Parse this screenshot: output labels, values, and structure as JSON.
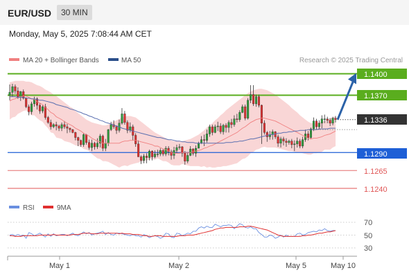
{
  "header": {
    "pair": "EUR/USD",
    "timeframe": "30 MIN",
    "timestamp": "Monday, May 5, 2025 7:08:44 AM CET"
  },
  "legend": {
    "ma20_bb": "MA 20 + Bollinger Bands",
    "ma50": "MA 50",
    "credit": "Research © 2025 Trading Central"
  },
  "rsi_legend": {
    "rsi": "RSI",
    "ma9": "9MA"
  },
  "colors": {
    "up": "#2e9e3c",
    "down": "#e03030",
    "bb": "#f7c8c8",
    "ma20": "#f08080",
    "ma50": "#5a6fb0",
    "green_level": "#5aad1e",
    "blue_level": "#1e5fd6",
    "red_level": "#e05555",
    "rsi": "#6a8fe0",
    "rsi_ma": "#e03030",
    "arrow": "#2b62a8",
    "current_tag": "#333333"
  },
  "chart_data": [
    {
      "type": "candlestick",
      "ylim": [
        1.1225,
        1.1425
      ],
      "levels": [
        {
          "value": 1.14,
          "label": "1.1400",
          "kind": "resistance"
        },
        {
          "value": 1.137,
          "label": "1.1370",
          "kind": "resistance"
        },
        {
          "value": 1.1336,
          "label": "1.1336",
          "kind": "current"
        },
        {
          "value": 1.129,
          "label": "1.1290",
          "kind": "pivot"
        },
        {
          "value": 1.1265,
          "label": "1.1265",
          "kind": "support"
        },
        {
          "value": 1.124,
          "label": "1.1240",
          "kind": "support"
        }
      ],
      "x_ticks": [
        "May 1",
        "May 2",
        "May 5",
        "May 10"
      ],
      "forecast_target": 1.14,
      "close": [
        1.1374,
        1.1382,
        1.1376,
        1.1368,
        1.1375,
        1.1366,
        1.1354,
        1.1347,
        1.1358,
        1.1365,
        1.1356,
        1.1348,
        1.1354,
        1.1339,
        1.1332,
        1.1326,
        1.1329,
        1.1327,
        1.1324,
        1.1329,
        1.1326,
        1.1324,
        1.1322,
        1.1318,
        1.1311,
        1.1307,
        1.1301,
        1.1315,
        1.1304,
        1.1297,
        1.1303,
        1.1298,
        1.1303,
        1.1313,
        1.1296,
        1.1303,
        1.1322,
        1.1329,
        1.1326,
        1.1321,
        1.1331,
        1.1344,
        1.1332,
        1.1321,
        1.1326,
        1.1314,
        1.1302,
        1.1284,
        1.1279,
        1.1285,
        1.1283,
        1.1292,
        1.1284,
        1.1288,
        1.1288,
        1.1293,
        1.1288,
        1.1296,
        1.1291,
        1.1286,
        1.1293,
        1.1297,
        1.1298,
        1.1289,
        1.1278,
        1.1286,
        1.1295,
        1.1289,
        1.1296,
        1.1303,
        1.1308,
        1.1307,
        1.1316,
        1.1326,
        1.1318,
        1.1326,
        1.1327,
        1.1319,
        1.1328,
        1.1325,
        1.1332,
        1.1329,
        1.1337,
        1.1336,
        1.1346,
        1.1354,
        1.1338,
        1.1363,
        1.1371,
        1.1358,
        1.1368,
        1.1356,
        1.1331,
        1.1318,
        1.1312,
        1.1315,
        1.1319,
        1.1312,
        1.1303,
        1.1309,
        1.1306,
        1.1304,
        1.1306,
        1.1301,
        1.1302,
        1.1306,
        1.1299,
        1.1308,
        1.1316,
        1.1311,
        1.1323,
        1.1334,
        1.1326,
        1.1331,
        1.1337,
        1.1337,
        1.1335,
        1.1331,
        1.1338,
        1.1336
      ],
      "high": [
        1.1385,
        1.1386,
        1.1385,
        1.1381,
        1.1376,
        1.1378,
        1.1367,
        1.1357,
        1.1361,
        1.1368,
        1.1367,
        1.1359,
        1.1356,
        1.1358,
        1.1341,
        1.1336,
        1.1331,
        1.1333,
        1.1329,
        1.1332,
        1.1334,
        1.133,
        1.1325,
        1.1323,
        1.1319,
        1.1312,
        1.1308,
        1.1317,
        1.1316,
        1.1308,
        1.1308,
        1.1305,
        1.131,
        1.1316,
        1.1315,
        1.1309,
        1.1323,
        1.1333,
        1.1335,
        1.1328,
        1.1336,
        1.1352,
        1.1348,
        1.1335,
        1.1332,
        1.1329,
        1.1317,
        1.1307,
        1.1286,
        1.1288,
        1.1289,
        1.1294,
        1.1293,
        1.1293,
        1.1294,
        1.1296,
        1.1295,
        1.1299,
        1.1299,
        1.1294,
        1.1298,
        1.1301,
        1.1302,
        1.1299,
        1.1292,
        1.129,
        1.1299,
        1.1296,
        1.13,
        1.1305,
        1.1313,
        1.1315,
        1.1322,
        1.1329,
        1.1329,
        1.1329,
        1.1333,
        1.1331,
        1.133,
        1.1331,
        1.1335,
        1.1337,
        1.1342,
        1.1344,
        1.1349,
        1.1357,
        1.1357,
        1.1366,
        1.1384,
        1.1384,
        1.1371,
        1.1371,
        1.1357,
        1.1335,
        1.132,
        1.132,
        1.1322,
        1.132,
        1.1315,
        1.1312,
        1.1312,
        1.131,
        1.1308,
        1.1309,
        1.1307,
        1.1311,
        1.1309,
        1.1312,
        1.1322,
        1.132,
        1.1325,
        1.1339,
        1.1337,
        1.1335,
        1.1342,
        1.1343,
        1.134,
        1.1338,
        1.134,
        1.1341
      ],
      "low": [
        1.1363,
        1.1368,
        1.1372,
        1.1365,
        1.1362,
        1.1364,
        1.1352,
        1.1342,
        1.1343,
        1.1354,
        1.135,
        1.1344,
        1.1345,
        1.1336,
        1.133,
        1.1322,
        1.1324,
        1.1321,
        1.132,
        1.132,
        1.1323,
        1.1317,
        1.1318,
        1.1317,
        1.1307,
        1.1299,
        1.1298,
        1.1298,
        1.1301,
        1.1294,
        1.1292,
        1.1294,
        1.1295,
        1.1297,
        1.1292,
        1.1292,
        1.1299,
        1.132,
        1.1323,
        1.1316,
        1.1318,
        1.1329,
        1.1329,
        1.1317,
        1.1318,
        1.1307,
        1.1298,
        1.1284,
        1.1274,
        1.1275,
        1.1275,
        1.1279,
        1.1279,
        1.1282,
        1.1284,
        1.1285,
        1.1285,
        1.1285,
        1.1286,
        1.128,
        1.1281,
        1.1289,
        1.1294,
        1.1284,
        1.1273,
        1.1275,
        1.1285,
        1.1286,
        1.1284,
        1.1296,
        1.1302,
        1.1299,
        1.1304,
        1.1312,
        1.1314,
        1.1317,
        1.132,
        1.1316,
        1.1315,
        1.1318,
        1.1318,
        1.1324,
        1.1326,
        1.1332,
        1.1333,
        1.1345,
        1.1335,
        1.1336,
        1.1359,
        1.1355,
        1.1354,
        1.1353,
        1.1302,
        1.1315,
        1.1305,
        1.1308,
        1.1308,
        1.1309,
        1.1298,
        1.1297,
        1.13,
        1.1298,
        1.1301,
        1.1296,
        1.1292,
        1.1297,
        1.1296,
        1.1296,
        1.1305,
        1.1307,
        1.1309,
        1.132,
        1.1322,
        1.1322,
        1.1324,
        1.1331,
        1.1331,
        1.1327,
        1.1328,
        1.1332
      ],
      "ma20": [
        1.1362,
        1.1364,
        1.1365,
        1.1367,
        1.1368,
        1.1369,
        1.1369,
        1.1367,
        1.1365,
        1.1364,
        1.1361,
        1.1359,
        1.1357,
        1.1353,
        1.135,
        1.1346,
        1.1344,
        1.134,
        1.1338,
        1.1336,
        1.1333,
        1.1331,
        1.1329,
        1.1327,
        1.1324,
        1.1322,
        1.132,
        1.1317,
        1.1315,
        1.1313,
        1.131,
        1.1308,
        1.1306,
        1.1305,
        1.1303,
        1.1303,
        1.1303,
        1.1303,
        1.1303,
        1.1303,
        1.1303,
        1.1305,
        1.1306,
        1.1306,
        1.1307,
        1.1307,
        1.1307,
        1.1306,
        1.1305,
        1.1304,
        1.1303,
        1.1302,
        1.1301,
        1.1299,
        1.1299,
        1.1297,
        1.1295,
        1.1294,
        1.1292,
        1.129,
        1.1289,
        1.1289,
        1.1289,
        1.129,
        1.129,
        1.129,
        1.129,
        1.1291,
        1.1292,
        1.1293,
        1.1294,
        1.1296,
        1.1297,
        1.1299,
        1.13,
        1.1302,
        1.1304,
        1.1306,
        1.1308,
        1.131,
        1.1312,
        1.1314,
        1.1316,
        1.1318,
        1.1321,
        1.1324,
        1.1326,
        1.1329,
        1.1332,
        1.1334,
        1.1336,
        1.1337,
        1.1338,
        1.1338,
        1.1337,
        1.1336,
        1.1335,
        1.1334,
        1.1332,
        1.133,
        1.1328,
        1.1326,
        1.1324,
        1.1322,
        1.132,
        1.1318,
        1.1316,
        1.1314,
        1.1312,
        1.131,
        1.1309,
        1.131,
        1.131,
        1.1311,
        1.1312,
        1.1314,
        1.1315,
        1.1316,
        1.1318,
        1.132
      ],
      "bb_upper": [
        1.1388,
        1.1389,
        1.139,
        1.139,
        1.139,
        1.139,
        1.1389,
        1.1389,
        1.1388,
        1.1386,
        1.1384,
        1.1383,
        1.1381,
        1.1378,
        1.1376,
        1.1374,
        1.1371,
        1.1369,
        1.1366,
        1.1363,
        1.136,
        1.1357,
        1.1354,
        1.1352,
        1.1348,
        1.1345,
        1.1342,
        1.1339,
        1.1336,
        1.1334,
        1.1332,
        1.1331,
        1.133,
        1.1329,
        1.1328,
        1.1328,
        1.1329,
        1.1331,
        1.1333,
        1.1335,
        1.1337,
        1.1339,
        1.134,
        1.1341,
        1.1341,
        1.134,
        1.1339,
        1.1336,
        1.1333,
        1.133,
        1.1327,
        1.1324,
        1.1321,
        1.1318,
        1.1316,
        1.1314,
        1.1312,
        1.131,
        1.1308,
        1.1307,
        1.1306,
        1.1306,
        1.1306,
        1.1306,
        1.1307,
        1.1308,
        1.1309,
        1.1311,
        1.1313,
        1.1315,
        1.1318,
        1.1321,
        1.1325,
        1.1328,
        1.1331,
        1.1335,
        1.1338,
        1.1342,
        1.1345,
        1.1349,
        1.1352,
        1.1355,
        1.1358,
        1.1361,
        1.1364,
        1.1367,
        1.137,
        1.1373,
        1.1375,
        1.1377,
        1.1378,
        1.1379,
        1.1379,
        1.1378,
        1.1377,
        1.1375,
        1.1373,
        1.1371,
        1.1368,
        1.1365,
        1.1362,
        1.1359,
        1.1356,
        1.1352,
        1.1349,
        1.1346,
        1.1342,
        1.1339,
        1.1336,
        1.1333,
        1.1331,
        1.1331,
        1.1331,
        1.1332,
        1.1333,
        1.1334,
        1.1336,
        1.1338,
        1.1339,
        1.1341
      ],
      "bb_lower": [
        1.1336,
        1.1339,
        1.134,
        1.1344,
        1.1346,
        1.1348,
        1.1349,
        1.1345,
        1.1342,
        1.1342,
        1.1338,
        1.1335,
        1.1333,
        1.1328,
        1.1324,
        1.1318,
        1.1317,
        1.1311,
        1.131,
        1.1309,
        1.1306,
        1.1305,
        1.1304,
        1.1302,
        1.13,
        1.1299,
        1.1298,
        1.1295,
        1.1294,
        1.1292,
        1.1288,
        1.1285,
        1.1282,
        1.1281,
        1.1278,
        1.1278,
        1.1277,
        1.1275,
        1.1273,
        1.1271,
        1.1269,
        1.1271,
        1.1272,
        1.1271,
        1.1273,
        1.1274,
        1.1275,
        1.1276,
        1.1277,
        1.1278,
        1.1279,
        1.128,
        1.1281,
        1.128,
        1.1282,
        1.128,
        1.1278,
        1.1278,
        1.1276,
        1.1273,
        1.1272,
        1.1272,
        1.1272,
        1.1274,
        1.1273,
        1.1272,
        1.1271,
        1.1271,
        1.1271,
        1.1271,
        1.127,
        1.1271,
        1.1269,
        1.127,
        1.1269,
        1.1269,
        1.127,
        1.127,
        1.1271,
        1.1271,
        1.1272,
        1.1273,
        1.1274,
        1.1275,
        1.1278,
        1.1281,
        1.1282,
        1.1285,
        1.1289,
        1.1291,
        1.1294,
        1.1295,
        1.1297,
        1.1298,
        1.1297,
        1.1297,
        1.1297,
        1.1297,
        1.1296,
        1.1295,
        1.1294,
        1.1293,
        1.1292,
        1.1292,
        1.1291,
        1.129,
        1.129,
        1.1289,
        1.1288,
        1.1287,
        1.1287,
        1.1289,
        1.1289,
        1.129,
        1.1291,
        1.1294,
        1.1294,
        1.1294,
        1.1297,
        1.1299
      ],
      "ma50": [
        1.1368,
        1.1368,
        1.1368,
        1.1367,
        1.1367,
        1.1367,
        1.1366,
        1.1366,
        1.1365,
        1.1365,
        1.1364,
        1.1363,
        1.1363,
        1.1362,
        1.1361,
        1.136,
        1.1359,
        1.1357,
        1.1356,
        1.1355,
        1.1354,
        1.1353,
        1.1351,
        1.135,
        1.1349,
        1.1347,
        1.1346,
        1.1344,
        1.1343,
        1.1341,
        1.134,
        1.1338,
        1.1337,
        1.1335,
        1.1334,
        1.1332,
        1.1331,
        1.133,
        1.1328,
        1.1327,
        1.1326,
        1.1324,
        1.1323,
        1.1322,
        1.1321,
        1.132,
        1.1319,
        1.1318,
        1.1317,
        1.1316,
        1.1315,
        1.1314,
        1.1313,
        1.1312,
        1.1311,
        1.1311,
        1.131,
        1.1309,
        1.1308,
        1.1308,
        1.1307,
        1.1306,
        1.1306,
        1.1305,
        1.1305,
        1.1304,
        1.1304,
        1.1304,
        1.1303,
        1.1303,
        1.1303,
        1.1303,
        1.1303,
        1.1303,
        1.1303,
        1.1303,
        1.1303,
        1.1303,
        1.1303,
        1.1304,
        1.1304,
        1.1304,
        1.1305,
        1.1305,
        1.1306,
        1.1306,
        1.1307,
        1.1308,
        1.1309,
        1.1309,
        1.131,
        1.1311,
        1.1312,
        1.1313,
        1.1314,
        1.1315,
        1.1315,
        1.1316,
        1.1317,
        1.1317,
        1.1318,
        1.1318,
        1.1319,
        1.1319,
        1.132,
        1.132,
        1.1321,
        1.1321,
        1.1321,
        1.1322,
        1.1322,
        1.1322,
        1.1322,
        1.1323,
        1.1323,
        1.1323,
        1.1323,
        1.1324,
        1.1324,
        1.1324
      ]
    },
    {
      "type": "line",
      "ylim": [
        20,
        80
      ],
      "y_ticks": [
        "70",
        "50",
        "30"
      ],
      "series": [
        {
          "name": "RSI",
          "values": [
            50,
            51,
            49,
            51,
            49,
            50,
            45,
            54,
            52,
            49,
            51,
            53,
            50,
            47,
            52,
            48,
            52,
            49,
            50,
            51,
            51,
            49,
            51,
            53,
            50,
            49,
            52,
            55,
            52,
            54,
            50,
            52,
            53,
            54,
            56,
            51,
            54,
            51,
            50,
            53,
            53,
            52,
            51,
            50,
            49,
            51,
            49,
            49,
            47,
            51,
            49,
            46,
            48,
            49,
            48,
            45,
            47,
            53,
            52,
            47,
            46,
            53,
            52,
            49,
            51,
            53,
            52,
            56,
            56,
            61,
            63,
            61,
            64,
            62,
            62,
            67,
            65,
            63,
            65,
            65,
            66,
            65,
            60,
            64,
            68,
            66,
            62,
            61,
            63,
            60,
            60,
            54,
            51,
            47,
            47,
            50,
            49,
            45,
            47,
            50,
            47,
            50,
            48,
            48,
            48,
            52,
            53,
            50,
            51,
            54,
            55,
            56,
            55,
            58,
            57,
            60,
            57,
            56,
            57,
            57
          ]
        },
        {
          "name": "9MA",
          "values": [
            49,
            49,
            48,
            48,
            48,
            49,
            49,
            49,
            49,
            49,
            49,
            50,
            50,
            50,
            50,
            50,
            51,
            50,
            50,
            50,
            50,
            50,
            50,
            51,
            51,
            51,
            52,
            53,
            53,
            53,
            52,
            52,
            52,
            53,
            53,
            53,
            53,
            53,
            53,
            53,
            52,
            53,
            52,
            52,
            52,
            51,
            51,
            51,
            50,
            49,
            49,
            48,
            48,
            49,
            49,
            49,
            48,
            48,
            48,
            48,
            48,
            48,
            49,
            49,
            49,
            50,
            50,
            50,
            51,
            52,
            53,
            54,
            55,
            56,
            57,
            59,
            60,
            61,
            61,
            62,
            62,
            62,
            62,
            62,
            63,
            63,
            63,
            64,
            64,
            63,
            62,
            61,
            60,
            59,
            58,
            56,
            54,
            52,
            50,
            49,
            48,
            48,
            48,
            48,
            48,
            48,
            48,
            49,
            49,
            50,
            50,
            51,
            52,
            53,
            53,
            54,
            55,
            55,
            56,
            57
          ]
        }
      ]
    }
  ]
}
